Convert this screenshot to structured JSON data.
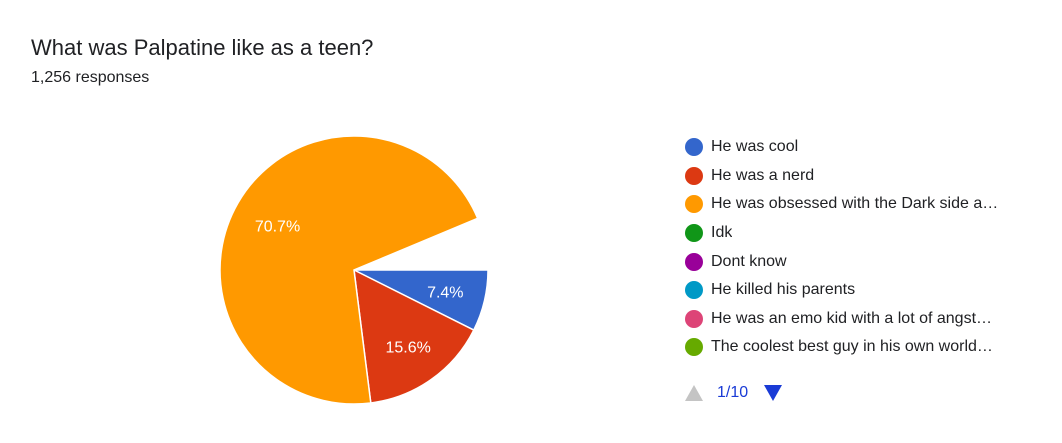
{
  "chart_data": {
    "type": "pie",
    "title": "What was Palpatine like as a teen?",
    "subtitle": "1,256 responses",
    "legend_position": "right",
    "slices": [
      {
        "name": "He was cool",
        "value": 7.4,
        "label": "7.4%",
        "color": "#3366cc"
      },
      {
        "name": "He was a nerd",
        "value": 15.6,
        "label": "15.6%",
        "color": "#dc3912"
      },
      {
        "name": "He was obsessed with the Dark side a…",
        "value": 70.7,
        "label": "70.7%",
        "color": "#ff9900"
      },
      {
        "name": "Idk",
        "value": 0,
        "label": "",
        "color": "#109618"
      },
      {
        "name": "Dont know",
        "value": 0,
        "label": "",
        "color": "#990099"
      },
      {
        "name": "He killed his parents",
        "value": 0,
        "label": "",
        "color": "#0099c6"
      },
      {
        "name": "He was an emo kid with a lot of angst…",
        "value": 0,
        "label": "",
        "color": "#dd4477"
      },
      {
        "name": "The coolest best guy in his own world…",
        "value": 0,
        "label": "",
        "color": "#66aa00"
      }
    ]
  },
  "pager": {
    "text": "1/10",
    "prev_icon": "triangle-up-icon",
    "next_icon": "triangle-down-icon",
    "prev_color": "#c4c4c4",
    "next_color": "#1a3bd6"
  }
}
